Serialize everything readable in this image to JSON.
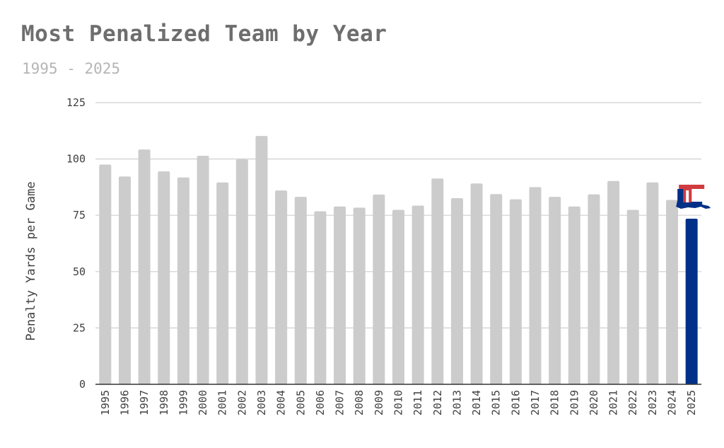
{
  "chart_data": {
    "type": "bar",
    "title": "Most Penalized Team by Year",
    "subtitle": "1995 - 2025",
    "xlabel": "",
    "ylabel": "Penalty Yards per Game",
    "ylim": [
      0,
      125
    ],
    "yticks": [
      0,
      25,
      50,
      75,
      100,
      125
    ],
    "grid": true,
    "categories": [
      "1995",
      "1996",
      "1997",
      "1998",
      "1999",
      "2000",
      "2001",
      "2002",
      "2003",
      "2004",
      "2005",
      "2006",
      "2007",
      "2008",
      "2009",
      "2010",
      "2011",
      "2012",
      "2013",
      "2014",
      "2015",
      "2016",
      "2017",
      "2018",
      "2019",
      "2020",
      "2021",
      "2022",
      "2023",
      "2024",
      "2025"
    ],
    "values": [
      97.5,
      92.2,
      104.2,
      94.5,
      91.8,
      101.4,
      89.6,
      99.8,
      110.2,
      86.0,
      83.2,
      76.8,
      78.9,
      78.4,
      84.2,
      77.4,
      79.3,
      91.3,
      82.6,
      89.1,
      84.4,
      82.1,
      87.5,
      83.2,
      78.9,
      84.3,
      90.2,
      77.4,
      89.6,
      81.8,
      73.5
    ],
    "highlight_index": 30,
    "colors": {
      "bar": "#cccccc",
      "highlight": "#003087",
      "logo_red": "#cf3b3f",
      "logo_blue": "#003087",
      "grid": "#cfcfcf",
      "axis": "#333333"
    },
    "logo_icon": "louisiana-tech-logo-icon"
  }
}
